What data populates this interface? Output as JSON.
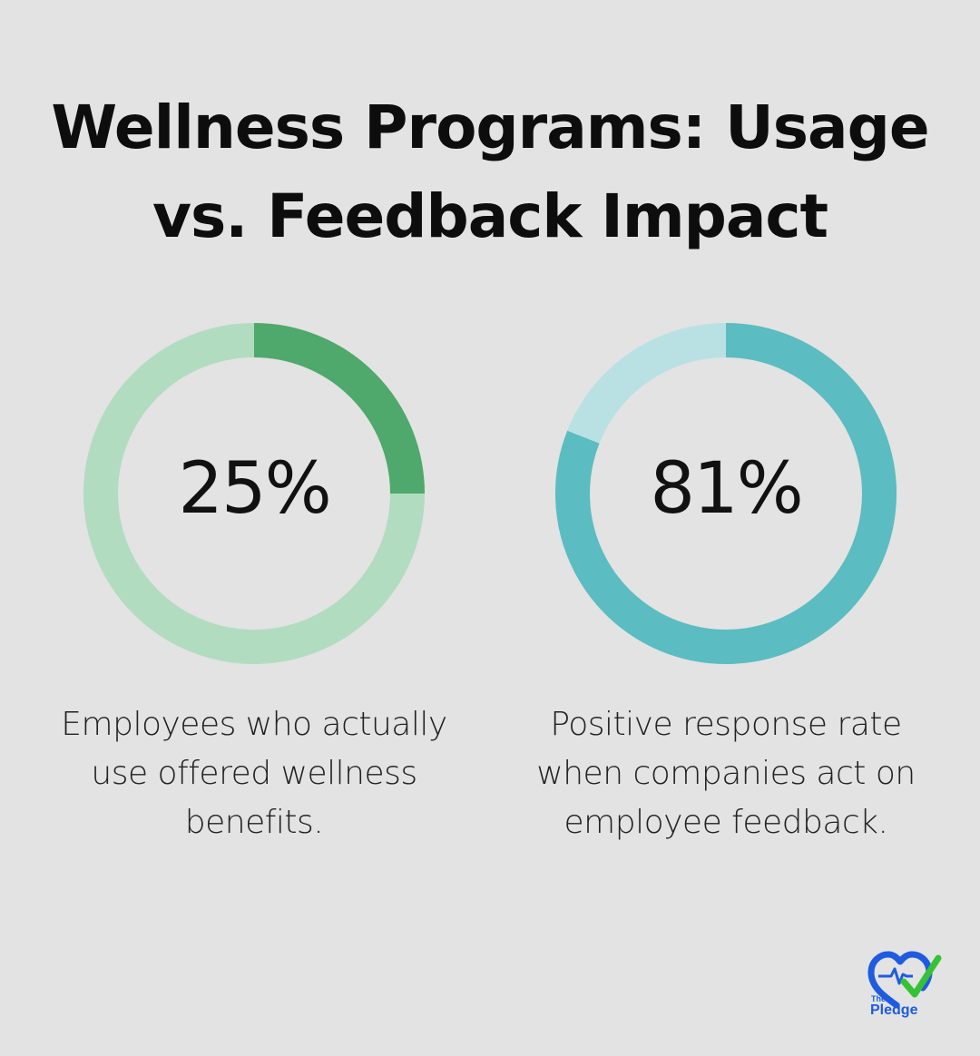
{
  "title": {
    "line1": "Wellness Programs: Usage",
    "line2": "vs. Feedback Impact"
  },
  "chart_data": [
    {
      "type": "pie",
      "variant": "donut",
      "value": 25,
      "max": 100,
      "label": "25%",
      "caption": [
        "Employees who actually",
        "use offered wellness",
        "benefits."
      ],
      "colors": {
        "fill": "#4fa86c",
        "track": "#b2dcc0"
      }
    },
    {
      "type": "pie",
      "variant": "donut",
      "value": 81,
      "max": 100,
      "label": "81%",
      "caption": [
        "Positive response rate",
        "when companies act on",
        "employee feedback."
      ],
      "colors": {
        "fill": "#5bbcc1",
        "track": "#b9e1e3"
      }
    }
  ],
  "logo": {
    "line1": "The",
    "line2": "Pledge",
    "colors": {
      "heart": "#1f5be0",
      "check": "#35c236",
      "text": "#1f5be0"
    }
  },
  "background": "#e2e3e2"
}
